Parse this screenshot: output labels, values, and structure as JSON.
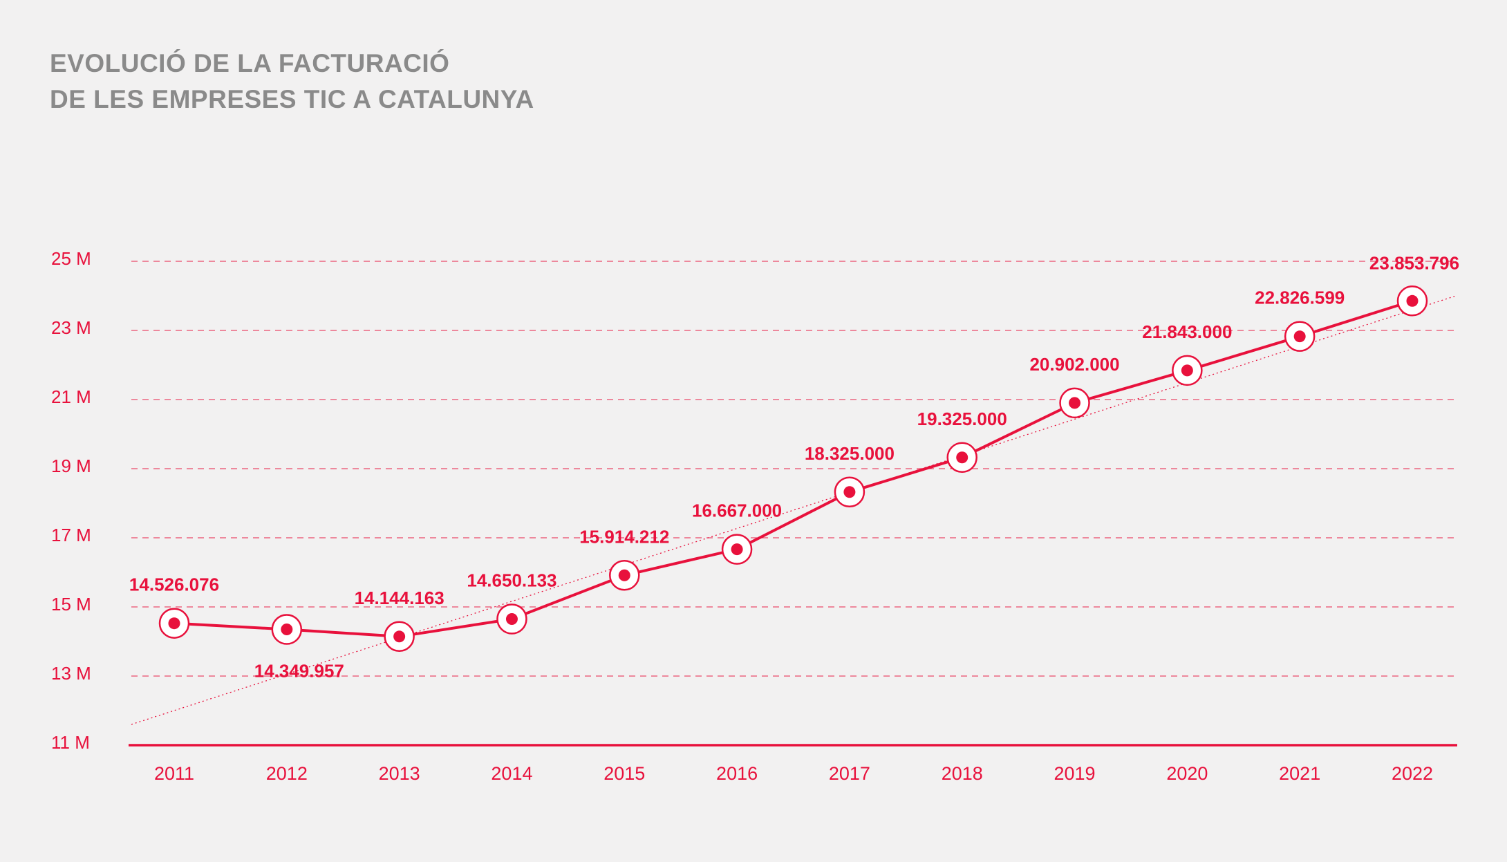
{
  "title_lines": [
    "EVOLUCIÓ DE LA FACTURACIÓ",
    "DE LES EMPRESES TIC A CATALUNYA"
  ],
  "colors": {
    "accent": "#e8113c",
    "title": "#8a8a8a",
    "background": "#f2f1f1"
  },
  "chart_data": {
    "type": "line",
    "title": "EVOLUCIÓ DE LA FACTURACIÓ DE LES EMPRESES TIC A CATALUNYA",
    "xlabel": "",
    "ylabel": "",
    "categories": [
      "2011",
      "2012",
      "2013",
      "2014",
      "2015",
      "2016",
      "2017",
      "2018",
      "2019",
      "2020",
      "2021",
      "2022"
    ],
    "series": [
      {
        "values": [
          14526076,
          14349957,
          14144163,
          14650133,
          15914212,
          16667000,
          18325000,
          19325000,
          20902000,
          21843000,
          22826599,
          23853796
        ],
        "labels": [
          "14.526.076",
          "14.349.957",
          "14.144.163",
          "14.650.133",
          "15.914.212",
          "16.667.000",
          "18.325.000",
          "19.325.000",
          "20.902.000",
          "21.843.000",
          "22.826.599",
          "23.853.796"
        ]
      }
    ],
    "trendline": {
      "style": "dotted",
      "from": 11600000,
      "to": 24000000
    },
    "ylim": [
      11000000,
      25000000
    ],
    "yticks": [
      11000000,
      13000000,
      15000000,
      17000000,
      19000000,
      21000000,
      23000000,
      25000000
    ],
    "ytick_labels": [
      "11 M",
      "13 M",
      "15 M",
      "17 M",
      "19 M",
      "21 M",
      "23 M",
      "25 M"
    ],
    "grid": "horizontal dashed",
    "legend": "none"
  }
}
